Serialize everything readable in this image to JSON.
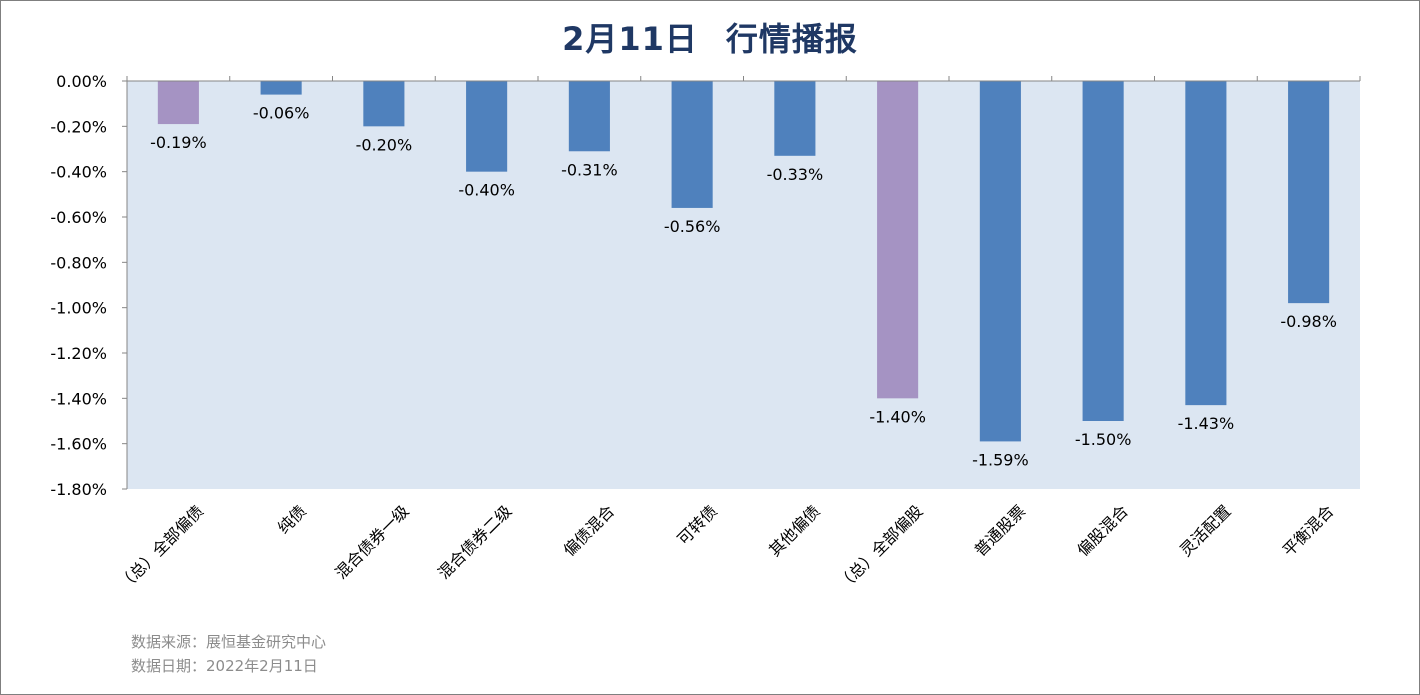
{
  "title": {
    "date": "2月11日",
    "text": "行情播报"
  },
  "notes": {
    "source": "数据来源：展恒基金研究中心",
    "date": "数据日期：2022年2月11日"
  },
  "chart_data": {
    "type": "bar",
    "title": "2月11日 行情播报",
    "xlabel": "",
    "ylabel": "",
    "ylim": [
      -1.8,
      0
    ],
    "yticks": [
      0,
      -0.2,
      -0.4,
      -0.6,
      -0.8,
      -1.0,
      -1.2,
      -1.4,
      -1.6,
      -1.8
    ],
    "ytick_labels": [
      "0.00%",
      "-0.20%",
      "-0.40%",
      "-0.60%",
      "-0.80%",
      "-1.00%",
      "-1.20%",
      "-1.40%",
      "-1.60%",
      "-1.80%"
    ],
    "grid": false,
    "legend": "none",
    "plot_background": "#dce6f2",
    "categories": [
      "（总）全部偏债",
      "纯债",
      "混合债券一级",
      "混合债券二级",
      "偏债混合",
      "可转债",
      "其他偏债",
      "（总）全部偏股",
      "普通股票",
      "偏股混合",
      "灵活配置",
      "平衡混合"
    ],
    "values": [
      -0.19,
      -0.06,
      -0.2,
      -0.4,
      -0.31,
      -0.56,
      -0.33,
      -1.4,
      -1.59,
      -1.5,
      -1.43,
      -0.98
    ],
    "data_labels": [
      "-0.19%",
      "-0.06%",
      "-0.20%",
      "-0.40%",
      "-0.31%",
      "-0.56%",
      "-0.33%",
      "-1.40%",
      "-1.59%",
      "-1.50%",
      "-1.43%",
      "-0.98%"
    ],
    "bar_colors": [
      "#a593c3",
      "#4f81bd",
      "#4f81bd",
      "#4f81bd",
      "#4f81bd",
      "#4f81bd",
      "#4f81bd",
      "#a593c3",
      "#4f81bd",
      "#4f81bd",
      "#4f81bd",
      "#4f81bd"
    ]
  }
}
